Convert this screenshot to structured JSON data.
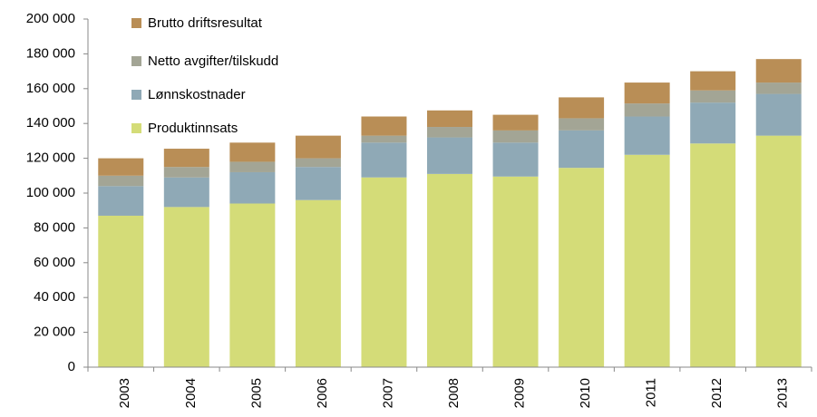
{
  "chart_data": {
    "type": "stacked_bar",
    "categories": [
      "2003",
      "2004",
      "2005",
      "2006",
      "2007",
      "2008",
      "2009",
      "2010",
      "2011",
      "2012",
      "2013"
    ],
    "series": [
      {
        "name": "Produktinnsats",
        "color": "#d4dc78",
        "values": [
          87000,
          92000,
          94000,
          96000,
          109000,
          111000,
          109500,
          114500,
          122000,
          128500,
          133000
        ]
      },
      {
        "name": "Lønnskostnader",
        "color": "#8fa9b6",
        "values": [
          17000,
          17000,
          18000,
          19000,
          20000,
          21000,
          19500,
          21500,
          22000,
          23500,
          24000
        ]
      },
      {
        "name": "Netto avgifter/tilskudd",
        "color": "#a3a595",
        "values": [
          6000,
          6000,
          6000,
          5000,
          4000,
          6000,
          7000,
          7000,
          7500,
          7000,
          6500
        ]
      },
      {
        "name": "Brutto driftsresultat",
        "color": "#b98e56",
        "values": [
          10000,
          10500,
          11000,
          13000,
          11000,
          9500,
          9000,
          12000,
          12000,
          11000,
          13500
        ]
      }
    ],
    "ylim": [
      0,
      200000
    ],
    "yticks": [
      0,
      {
        "value": 20000,
        "label": "20 000"
      },
      {
        "value": 40000,
        "label": "40 000"
      },
      {
        "value": 60000,
        "label": "60 000"
      },
      {
        "value": 80000,
        "label": "80 000"
      },
      {
        "value": 100000,
        "label": "100 000"
      },
      {
        "value": 120000,
        "label": "120 000"
      },
      {
        "value": 140000,
        "label": "140 000"
      },
      {
        "value": 160000,
        "label": "160 000"
      },
      {
        "value": 180000,
        "label": "180 000"
      },
      {
        "value": 200000,
        "label": "200 000"
      }
    ],
    "grid": false,
    "legend": "top-left"
  }
}
